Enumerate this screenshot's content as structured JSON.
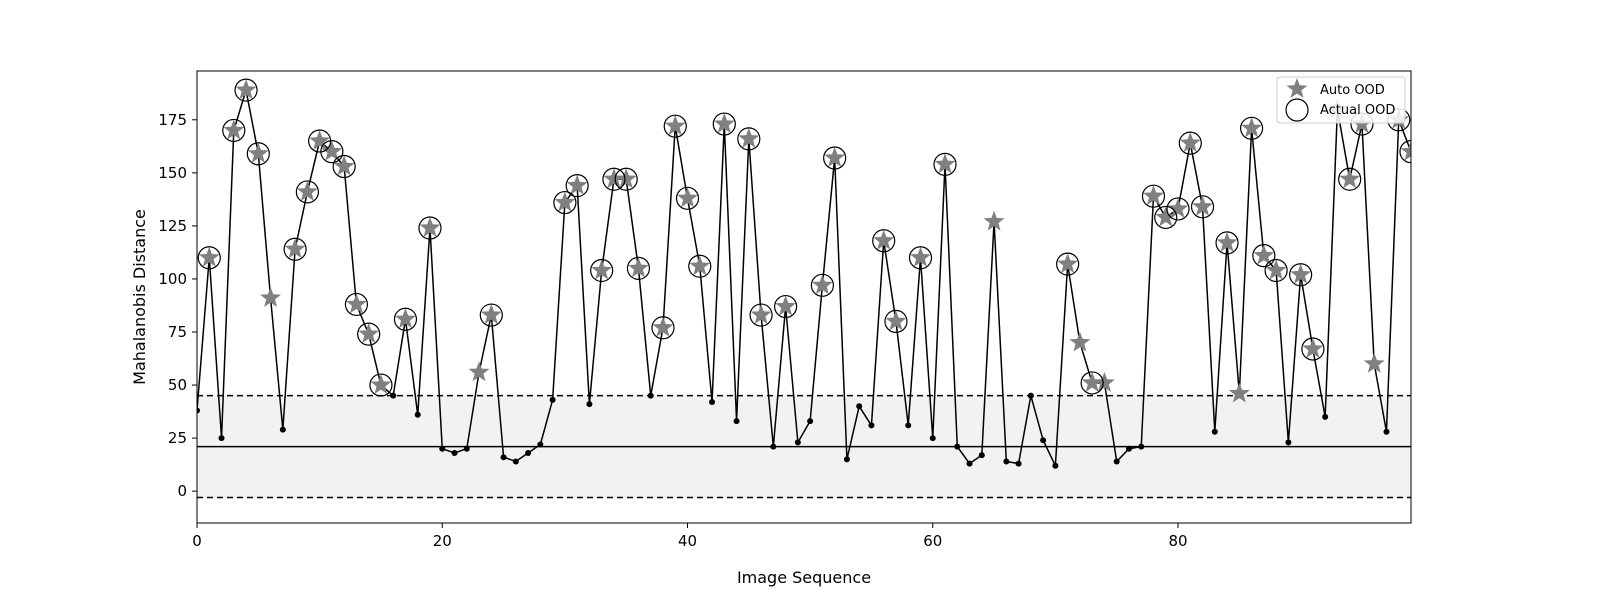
{
  "chart_data": {
    "type": "line",
    "title": "",
    "xlabel": "Image Sequence",
    "ylabel": "Mahalanobis Distance",
    "xlim": [
      0,
      99
    ],
    "ylim": [
      -15,
      198
    ],
    "xticks": [
      0,
      20,
      40,
      60,
      80
    ],
    "yticks": [
      0,
      25,
      50,
      75,
      100,
      125,
      150,
      175
    ],
    "grid": false,
    "legend_position": "top-right",
    "threshold": {
      "mean": 21,
      "upper": 45,
      "lower": -3
    },
    "series": [
      {
        "values": [
          38,
          110,
          25,
          170,
          189,
          159,
          91,
          29,
          114,
          141,
          165,
          160,
          153,
          88,
          74,
          50,
          45,
          81,
          36,
          124,
          20,
          18,
          20,
          56,
          83,
          16,
          14,
          18,
          22,
          43,
          136,
          144,
          41,
          104,
          147,
          147,
          105,
          45,
          77,
          172,
          138,
          106,
          42,
          173,
          33,
          166,
          83,
          21,
          87,
          23,
          33,
          97,
          157,
          15,
          40,
          31,
          118,
          80,
          31,
          110,
          25,
          154,
          21,
          13,
          17,
          127,
          14,
          13,
          45,
          24,
          12,
          107,
          70,
          51,
          51,
          14,
          20,
          21,
          139,
          129,
          133,
          164,
          134,
          28,
          117,
          46,
          171,
          111,
          104,
          23,
          102,
          67,
          35,
          180,
          147,
          173,
          60,
          28,
          175,
          160
        ]
      },
      {
        "name": "Auto OOD",
        "indices": [
          1,
          3,
          4,
          5,
          6,
          8,
          9,
          10,
          11,
          12,
          13,
          14,
          15,
          17,
          19,
          23,
          24,
          30,
          31,
          33,
          34,
          35,
          36,
          38,
          39,
          40,
          41,
          43,
          45,
          46,
          48,
          51,
          52,
          56,
          57,
          59,
          61,
          65,
          71,
          72,
          73,
          74,
          78,
          79,
          80,
          81,
          82,
          84,
          85,
          86,
          87,
          88,
          90,
          91,
          93,
          94,
          95,
          96,
          98,
          99
        ]
      },
      {
        "name": "Actual OOD",
        "indices": [
          1,
          3,
          4,
          5,
          8,
          9,
          10,
          11,
          12,
          13,
          14,
          15,
          17,
          19,
          24,
          30,
          31,
          33,
          34,
          35,
          36,
          38,
          39,
          40,
          41,
          43,
          45,
          46,
          48,
          51,
          52,
          56,
          57,
          59,
          61,
          71,
          73,
          78,
          79,
          80,
          81,
          82,
          84,
          86,
          87,
          88,
          90,
          91,
          94,
          95,
          98,
          99
        ]
      }
    ],
    "colors": {
      "line": "#000000",
      "star": "#808080",
      "band": "#f2f2f2"
    }
  }
}
